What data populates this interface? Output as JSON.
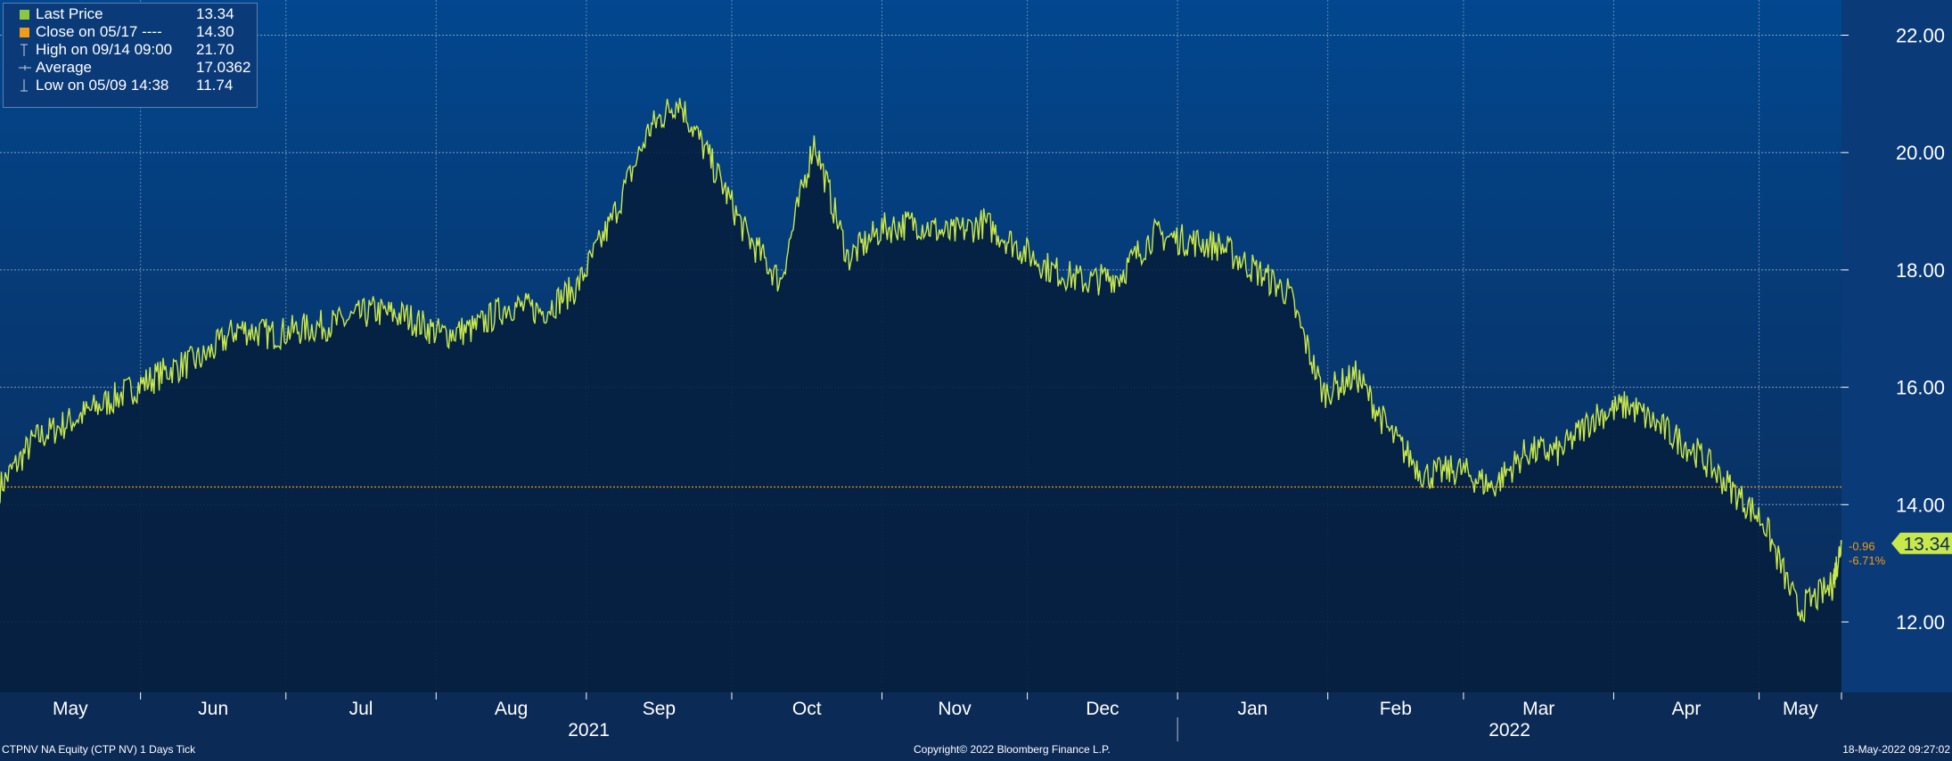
{
  "legend": {
    "last_price_label": "Last Price",
    "last_price_value": "13.34",
    "close_label": "Close on 05/17 ----",
    "close_value": "14.30",
    "high_label": "High on 09/14 09:00",
    "high_value": "21.70",
    "average_label": "Average",
    "average_value": "17.0362",
    "low_label": "Low on 05/09 14:38",
    "low_value": "11.74"
  },
  "colors": {
    "price_line": "#c9e84a",
    "close_line": "#f39c12",
    "gradient_top": "#02478f",
    "gradient_bottom": "#0b2a55",
    "fill": "#061f3f",
    "grid": "#9fb4cf"
  },
  "footer": {
    "left": "CTPNV NA Equity (CTP NV) 1 Days  Tick",
    "center": "Copyright© 2022 Bloomberg Finance L.P.",
    "right": "18-May-2022 09:27:02"
  },
  "chart_data": {
    "type": "line",
    "title": "",
    "xlabel": "",
    "ylabel": "",
    "ylim": [
      10.8,
      22.6
    ],
    "y_ticks": [
      "12.00",
      "14.00",
      "16.00",
      "18.00",
      "20.00",
      "22.00"
    ],
    "x_tick_labels": [
      "May",
      "Jun",
      "Jul",
      "Aug",
      "Sep",
      "Oct",
      "Nov",
      "Dec",
      "Jan",
      "Feb",
      "Mar",
      "Apr",
      "May"
    ],
    "year_labels": [
      "2021",
      "2022"
    ],
    "grid": true,
    "legend_position": "top-left",
    "close_reference": 14.3,
    "last_price": "13.34",
    "change_abs": "-0.96",
    "change_pct": "-6.71%",
    "series": [
      {
        "name": "Last Price",
        "x": [
          "2021-05-03",
          "2021-05-10",
          "2021-05-17",
          "2021-05-24",
          "2021-05-31",
          "2021-06-07",
          "2021-06-14",
          "2021-06-21",
          "2021-06-28",
          "2021-07-05",
          "2021-07-12",
          "2021-07-19",
          "2021-07-26",
          "2021-08-02",
          "2021-08-09",
          "2021-08-16",
          "2021-08-23",
          "2021-08-30",
          "2021-09-06",
          "2021-09-14",
          "2021-09-20",
          "2021-09-27",
          "2021-10-04",
          "2021-10-11",
          "2021-10-18",
          "2021-10-25",
          "2021-11-01",
          "2021-11-08",
          "2021-11-15",
          "2021-11-22",
          "2021-11-29",
          "2021-12-06",
          "2021-12-13",
          "2021-12-20",
          "2021-12-27",
          "2022-01-03",
          "2022-01-10",
          "2022-01-17",
          "2022-01-24",
          "2022-01-31",
          "2022-02-07",
          "2022-02-14",
          "2022-02-21",
          "2022-02-28",
          "2022-03-07",
          "2022-03-14",
          "2022-03-21",
          "2022-03-28",
          "2022-04-04",
          "2022-04-11",
          "2022-04-18",
          "2022-04-25",
          "2022-05-02",
          "2022-05-09",
          "2022-05-16",
          "2022-05-18"
        ],
        "y": [
          14.3,
          15.1,
          15.4,
          15.7,
          16.0,
          16.3,
          16.5,
          17.0,
          16.9,
          17.0,
          17.1,
          17.3,
          17.2,
          16.9,
          17.0,
          17.4,
          17.3,
          17.7,
          18.8,
          20.4,
          20.9,
          19.8,
          18.6,
          17.8,
          20.2,
          18.2,
          18.7,
          18.8,
          18.6,
          18.8,
          18.4,
          18.0,
          17.8,
          17.9,
          18.6,
          18.5,
          18.4,
          18.0,
          17.6,
          15.9,
          16.2,
          15.2,
          14.5,
          14.6,
          14.3,
          14.9,
          14.9,
          15.5,
          15.7,
          15.3,
          14.9,
          14.3,
          13.7,
          12.2,
          12.6,
          13.34
        ]
      }
    ]
  }
}
